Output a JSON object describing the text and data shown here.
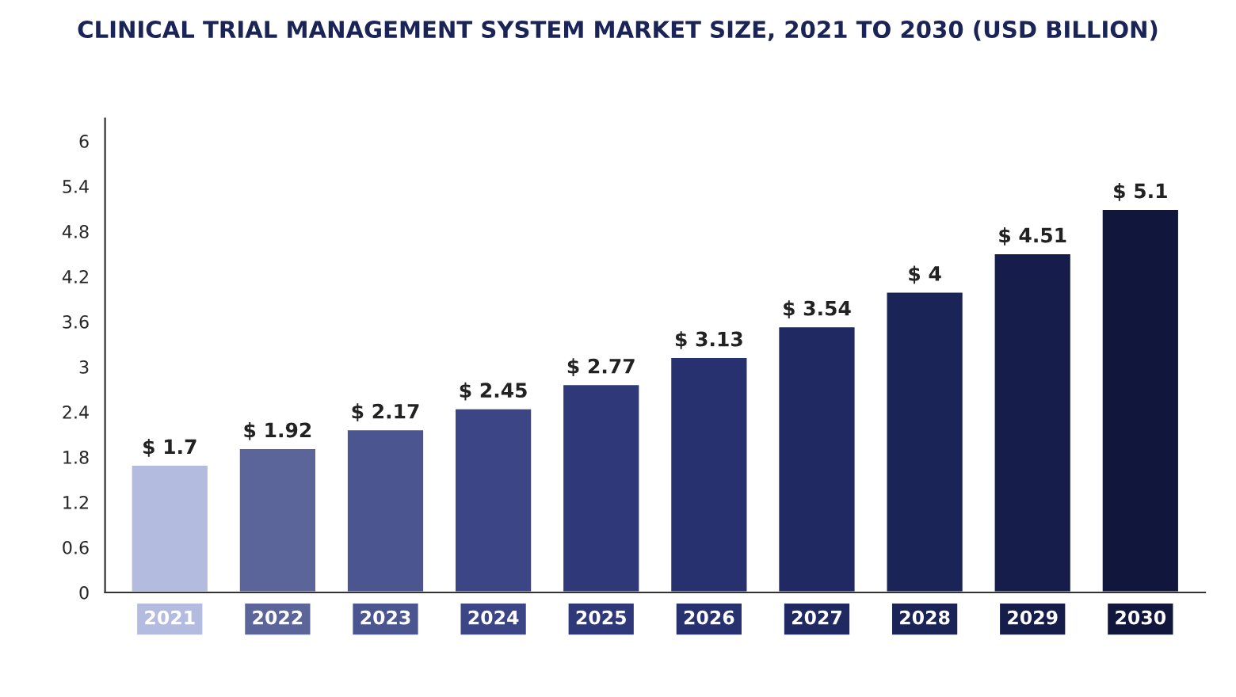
{
  "chart_data": {
    "type": "bar",
    "title": "CLINICAL TRIAL MANAGEMENT SYSTEM MARKET SIZE, 2021 TO 2030 (USD BILLION)",
    "categories": [
      "2021",
      "2022",
      "2023",
      "2024",
      "2025",
      "2026",
      "2027",
      "2028",
      "2029",
      "2030"
    ],
    "values": [
      1.7,
      1.92,
      2.17,
      2.45,
      2.77,
      3.13,
      3.54,
      4,
      4.51,
      5.1
    ],
    "value_labels": [
      "$ 1.7",
      "$ 1.92",
      "$ 2.17",
      "$ 2.45",
      "$ 2.77",
      "$ 3.13",
      "$ 3.54",
      "$ 4",
      "$ 4.51",
      "$ 5.1"
    ],
    "colors": [
      "#b3bbdf",
      "#5b6599",
      "#4b5590",
      "#3c4686",
      "#2f397a",
      "#273170",
      "#202962",
      "#1b2456",
      "#161d4a",
      "#11173c"
    ],
    "ylim": [
      0,
      6.3
    ],
    "yticks": [
      0,
      0.6,
      1.2,
      1.8,
      2.4,
      3,
      3.6,
      4.2,
      4.8,
      5.4,
      6
    ],
    "grid": false,
    "legend": false
  }
}
